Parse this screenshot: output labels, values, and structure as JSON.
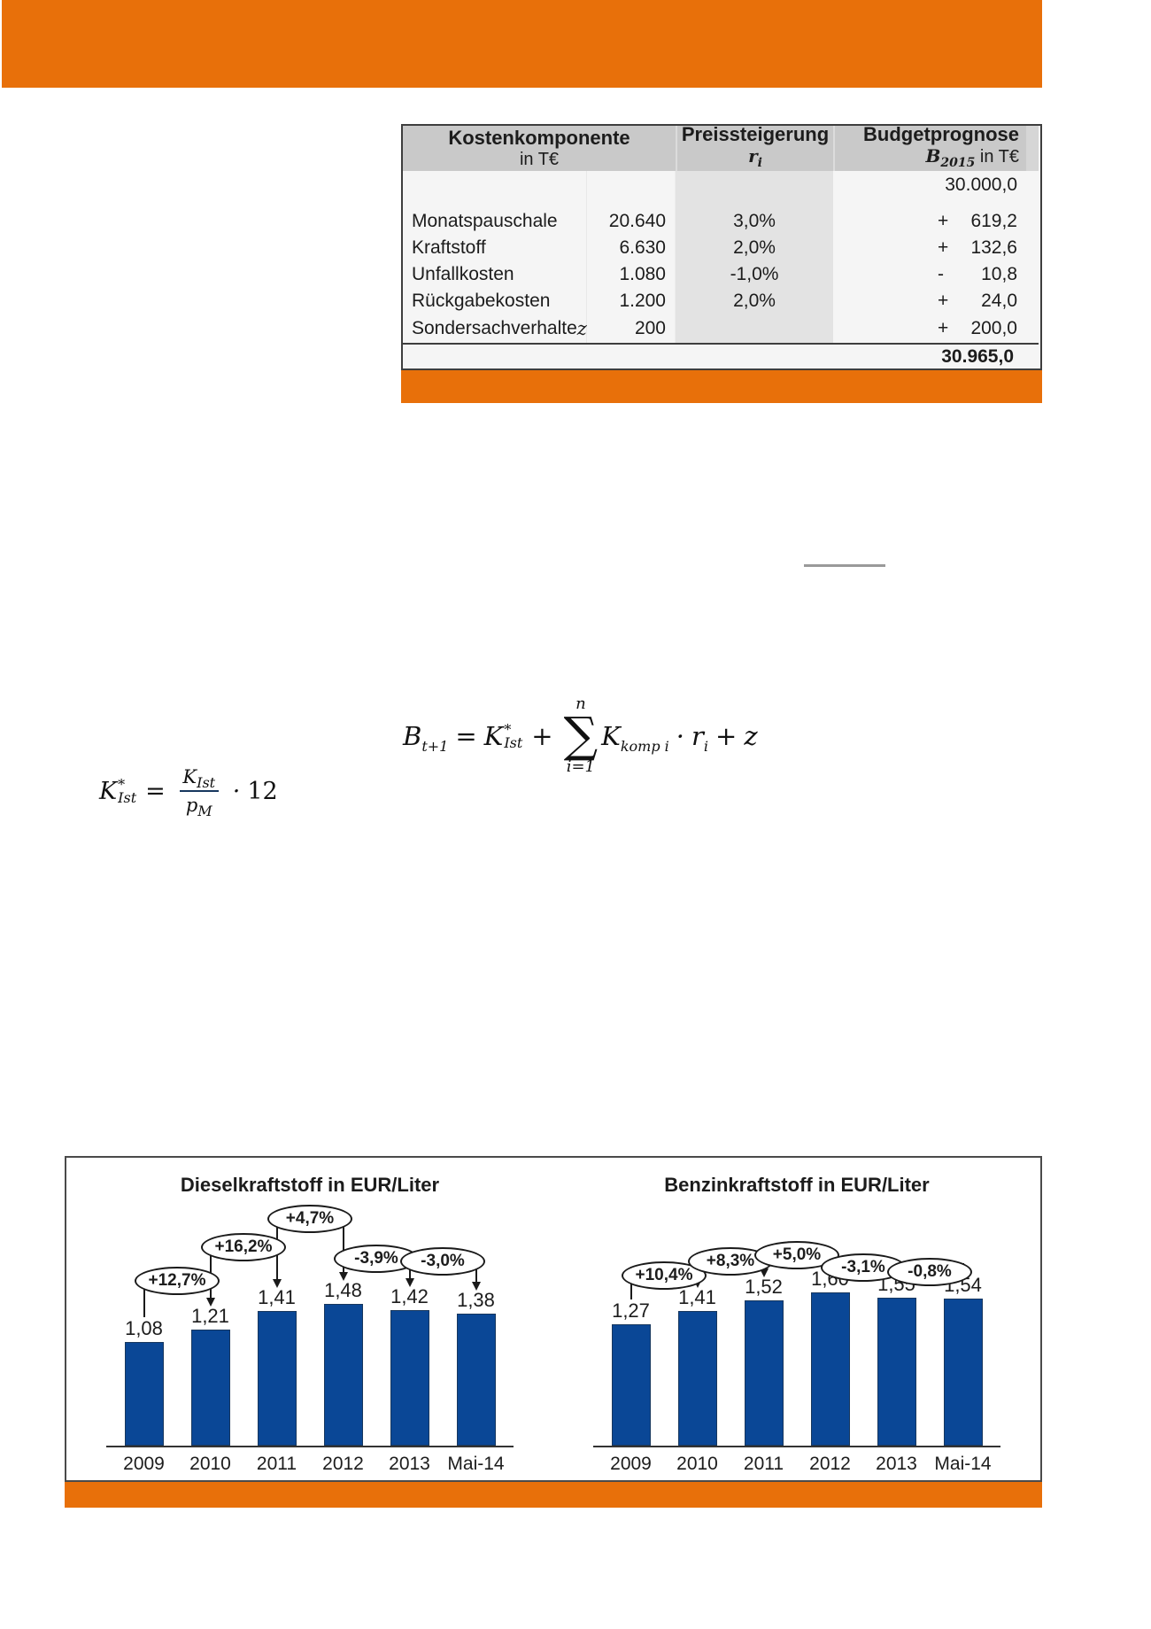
{
  "colors": {
    "accent_orange": "#E8700A",
    "bar_blue": "#0A4796",
    "table_header_gray": "#C9C9C9",
    "rate_column_gray": "#E3E3E3"
  },
  "table": {
    "col1_header": "Kostenkomponente",
    "col1_subheader": "in T€",
    "col2_header": "Preissteigerung",
    "col2_sub_var": "r",
    "col2_sub_idx": "i",
    "col3_header": "Budgetprognose",
    "col3_sub_var": "B",
    "col3_sub_idx": "2015",
    "col3_sub_rest": "in T€",
    "base_value": "30.000,0",
    "rows": [
      {
        "label": "Monatspauschale",
        "label_var": "",
        "amount": "20.640",
        "rate": "3,0%",
        "sign": "+",
        "delta": "619,2"
      },
      {
        "label": "Kraftstoff",
        "label_var": "",
        "amount": "6.630",
        "rate": "2,0%",
        "sign": "+",
        "delta": "132,6"
      },
      {
        "label": "Unfallkosten",
        "label_var": "",
        "amount": "1.080",
        "rate": "-1,0%",
        "sign": "-",
        "delta": "10,8"
      },
      {
        "label": "Rückgabekosten",
        "label_var": "",
        "amount": "1.200",
        "rate": "2,0%",
        "sign": "+",
        "delta": "24,0"
      },
      {
        "label": "Sondersachverhalte ",
        "label_var": "z",
        "amount": "200",
        "rate": "",
        "sign": "+",
        "delta": "200,0"
      }
    ],
    "total": "30.965,0"
  },
  "formulas": {
    "budget": {
      "lhs": "B",
      "lhs_sub": "t+1",
      "eq": "=",
      "k": "K",
      "k_sup": "*",
      "k_sub": "Ist",
      "plus1": "+",
      "sum_symbol": "∑",
      "sum_upper": "n",
      "sum_lower": "i=1",
      "k2": "K",
      "k2_sub": "komp i",
      "dot": "·",
      "r": "r",
      "r_sub": "i",
      "plus2": "+",
      "z": "z"
    },
    "kist": {
      "lhs": "K",
      "lhs_sup": "*",
      "lhs_sub": "Ist",
      "eq": "=",
      "num": "K",
      "num_sub": "Ist",
      "den": "p",
      "den_sub": "M",
      "dot": "·",
      "factor": "12"
    }
  },
  "chart_data": [
    {
      "type": "bar",
      "title": "Dieselkraftstoff in EUR/Liter",
      "xlabel": "",
      "ylabel": "EUR/Liter",
      "categories": [
        "2009",
        "2010",
        "2011",
        "2012",
        "2013",
        "Mai-14"
      ],
      "values": [
        1.08,
        1.21,
        1.41,
        1.48,
        1.42,
        1.38
      ],
      "values_display": [
        "1,08",
        "1,21",
        "1,41",
        "1,48",
        "1,42",
        "1,38"
      ],
      "annotations": [
        "+12,7%",
        "+16,2%",
        "+4,7%",
        "-3,9%",
        "-3,0%"
      ],
      "bar_color": "#0A4796",
      "grid": false,
      "legend": "none"
    },
    {
      "type": "bar",
      "title": "Benzinkraftstoff in EUR/Liter",
      "xlabel": "",
      "ylabel": "EUR/Liter",
      "categories": [
        "2009",
        "2010",
        "2011",
        "2012",
        "2013",
        "Mai-14"
      ],
      "values": [
        1.27,
        1.41,
        1.52,
        1.6,
        1.55,
        1.54
      ],
      "values_display": [
        "1,27",
        "1,41",
        "1,52",
        "1,60",
        "1,55",
        "1,54"
      ],
      "annotations": [
        "+10,4%",
        "+8,3%",
        "+5,0%",
        "-3,1%",
        "-0,8%"
      ],
      "bar_color": "#0A4796",
      "grid": false,
      "legend": "none"
    }
  ]
}
